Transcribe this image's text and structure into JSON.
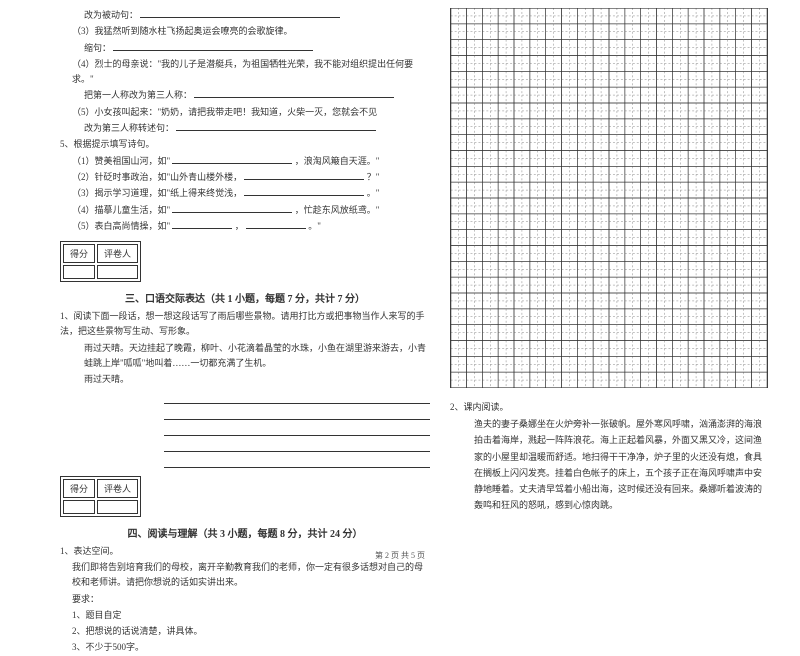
{
  "q3_line1": "改为被动句：",
  "q3_sub3": "（3）我猛然听到随水柱飞扬起奥运会嘹亮的会歌旋律。",
  "q3_sub3_label": "缩句：",
  "q3_sub4": "（4）烈士的母亲说：\"我的儿子是潜艇兵，为祖国牺牲光荣，我不能对组织提出任何要求。\"",
  "q3_sub4_label": "把第一人称改为第三人称：",
  "q3_sub5": "（5）小女孩叫起来：\"奶奶，请把我带走吧！我知道，火柴一灭，您就会不见",
  "q3_sub5_label": "改为第三人称转述句：",
  "q5_title": "5、根据提示填写诗句。",
  "q5_1a": "（1）赞美祖国山河，如\"",
  "q5_1b": "，浪淘风簸自天涯。\"",
  "q5_2a": "（2）针砭时事政治，如\"山外青山楼外楼，",
  "q5_2b": "？\"",
  "q5_3a": "（3）揭示学习道理，如\"纸上得来终觉浅，",
  "q5_3b": "。\"",
  "q5_4a": "（4）描摹儿童生活，如\"",
  "q5_4b": "，忙趁东风放纸鸢。\"",
  "q5_5a": "（5）表白高尚情操，如\"",
  "q5_5b": "，",
  "q5_5c": "。\"",
  "score_h1": "得分",
  "score_h2": "评卷人",
  "section3": "三、口语交际表达（共 1 小题，每题 7 分，共计 7 分）",
  "s3_q1": "1、阅读下面一段话，想一想这段话写了雨后哪些景物。请用打比方或把事物当作人来写的手法，把这些景物写生动、写形象。",
  "s3_body1": "雨过天晴。天边挂起了晚霞，柳叶、小花滴着晶莹的水珠，小鱼在湖里游来游去，小青蛙跳上岸\"呱呱\"地叫着……一切都充满了生机。",
  "s3_body2": "雨过天晴。",
  "section4": "四、阅读与理解（共 3 小题，每题 8 分，共计 24 分）",
  "s4_q1": "1、表达空间。",
  "s4_q1_body": "我们即将告别培育我们的母校，离开辛勤教育我们的老师，你一定有很多话想对自己的母校和老师讲。请把你想说的话如实讲出来。",
  "s4_req": "要求：",
  "s4_req1": "1、题目自定",
  "s4_req2": "2、把想说的话说清楚，讲具体。",
  "s4_req3": "3、不少于500字。",
  "right_q2": "2、课内阅读。",
  "right_body": "渔夫的妻子桑娜坐在火炉旁补一张破帆。屋外寒风呼啸，汹涌澎湃的海浪拍击着海岸，溅起一阵阵浪花。海上正起着风暴，外面又黑又冷，这间渔家的小屋里却温暖而舒适。地扫得干干净净，炉子里的火还没有熄，食具在搁板上闪闪发亮。挂着白色帐子的床上，五个孩子正在海风呼啸声中安静地睡着。丈夫清早驾着小船出海，这时候还没有回来。桑娜听着波涛的轰鸣和狂风的怒吼，感到心惊肉跳。",
  "footer": "第 2 页 共 5 页",
  "grid": {
    "cols": 20,
    "rows": 24,
    "cell": 15.9,
    "outer_stroke": "#333",
    "inner_stroke": "#666",
    "dash": "2 2"
  }
}
